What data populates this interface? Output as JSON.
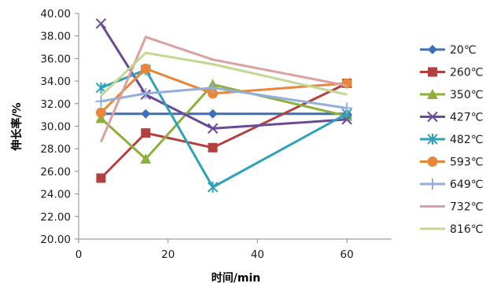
{
  "chart_data": {
    "type": "line",
    "xlabel": "时间/min",
    "ylabel": "伸长率/%",
    "xlim": [
      0,
      70
    ],
    "ylim": [
      20,
      40
    ],
    "xticks": [
      0,
      20,
      40,
      60
    ],
    "yticks": [
      "20.00",
      "22.00",
      "24.00",
      "26.00",
      "28.00",
      "30.00",
      "32.00",
      "34.00",
      "36.00",
      "38.00",
      "40.00"
    ],
    "xtick_labels": [
      "0",
      "20",
      "40",
      "60"
    ],
    "grid": false,
    "legend": "right",
    "x": [
      5,
      15,
      30,
      60
    ],
    "series": [
      {
        "name": "20℃",
        "color": "#3c6fb7",
        "marker": "diamond",
        "values": [
          31.1,
          31.1,
          31.1,
          31.1
        ]
      },
      {
        "name": "260℃",
        "color": "#b3403e",
        "marker": "square",
        "values": [
          25.4,
          29.4,
          28.1,
          33.8
        ]
      },
      {
        "name": "350℃",
        "color": "#8eae3e",
        "marker": "triangle",
        "values": [
          30.7,
          27.1,
          33.7,
          30.9
        ]
      },
      {
        "name": "427℃",
        "color": "#6a4a96",
        "marker": "x",
        "values": [
          39.1,
          32.8,
          29.8,
          30.6
        ]
      },
      {
        "name": "482℃",
        "color": "#2fa2b9",
        "marker": "asterisk",
        "values": [
          33.4,
          35.0,
          24.6,
          31.1
        ]
      },
      {
        "name": "593℃",
        "color": "#e8873a",
        "marker": "circle",
        "values": [
          31.2,
          35.1,
          32.9,
          33.8
        ]
      },
      {
        "name": "649℃",
        "color": "#93aedb",
        "marker": "plus",
        "values": [
          32.2,
          32.9,
          33.4,
          31.6
        ]
      },
      {
        "name": "732℃",
        "color": "#dba0a0",
        "marker": "none",
        "values": [
          28.6,
          37.9,
          35.9,
          33.6
        ]
      },
      {
        "name": "816℃",
        "color": "#c2d790",
        "marker": "none",
        "values": [
          32.7,
          36.5,
          35.5,
          32.8
        ]
      }
    ]
  }
}
